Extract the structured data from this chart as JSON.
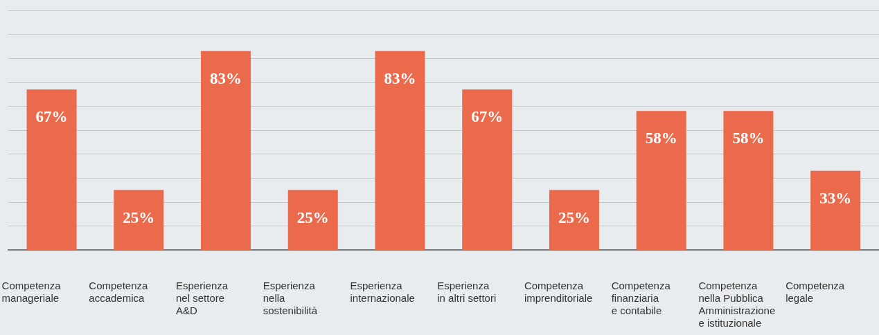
{
  "chart_data": {
    "type": "bar",
    "categories": [
      "Competenza\nmanageriale",
      "Competenza\naccademica",
      "Esperienza\nnel settore\nA&D",
      "Esperienza\nnella\nsostenibilità",
      "Esperienza\ninternazionale",
      "Esperienza\nin altri settori",
      "Competenza\nimprenditoriale",
      "Competenza\nfinanziaria\ne contabile",
      "Competenza\nnella Pubblica\nAmministrazione\ne istituzionale",
      "Competenza\nlegale"
    ],
    "values": [
      67,
      25,
      83,
      25,
      83,
      67,
      25,
      58,
      58,
      33
    ],
    "value_labels": [
      "67%",
      "25%",
      "83%",
      "25%",
      "83%",
      "67%",
      "25%",
      "58%",
      "58%",
      "33%"
    ],
    "color": "#ec6a4c",
    "ylim": [
      0,
      100
    ],
    "yticks": [
      0,
      10,
      20,
      30,
      40,
      50,
      60,
      70,
      80,
      90,
      100
    ],
    "grid": "y",
    "tick_labels": "x"
  }
}
